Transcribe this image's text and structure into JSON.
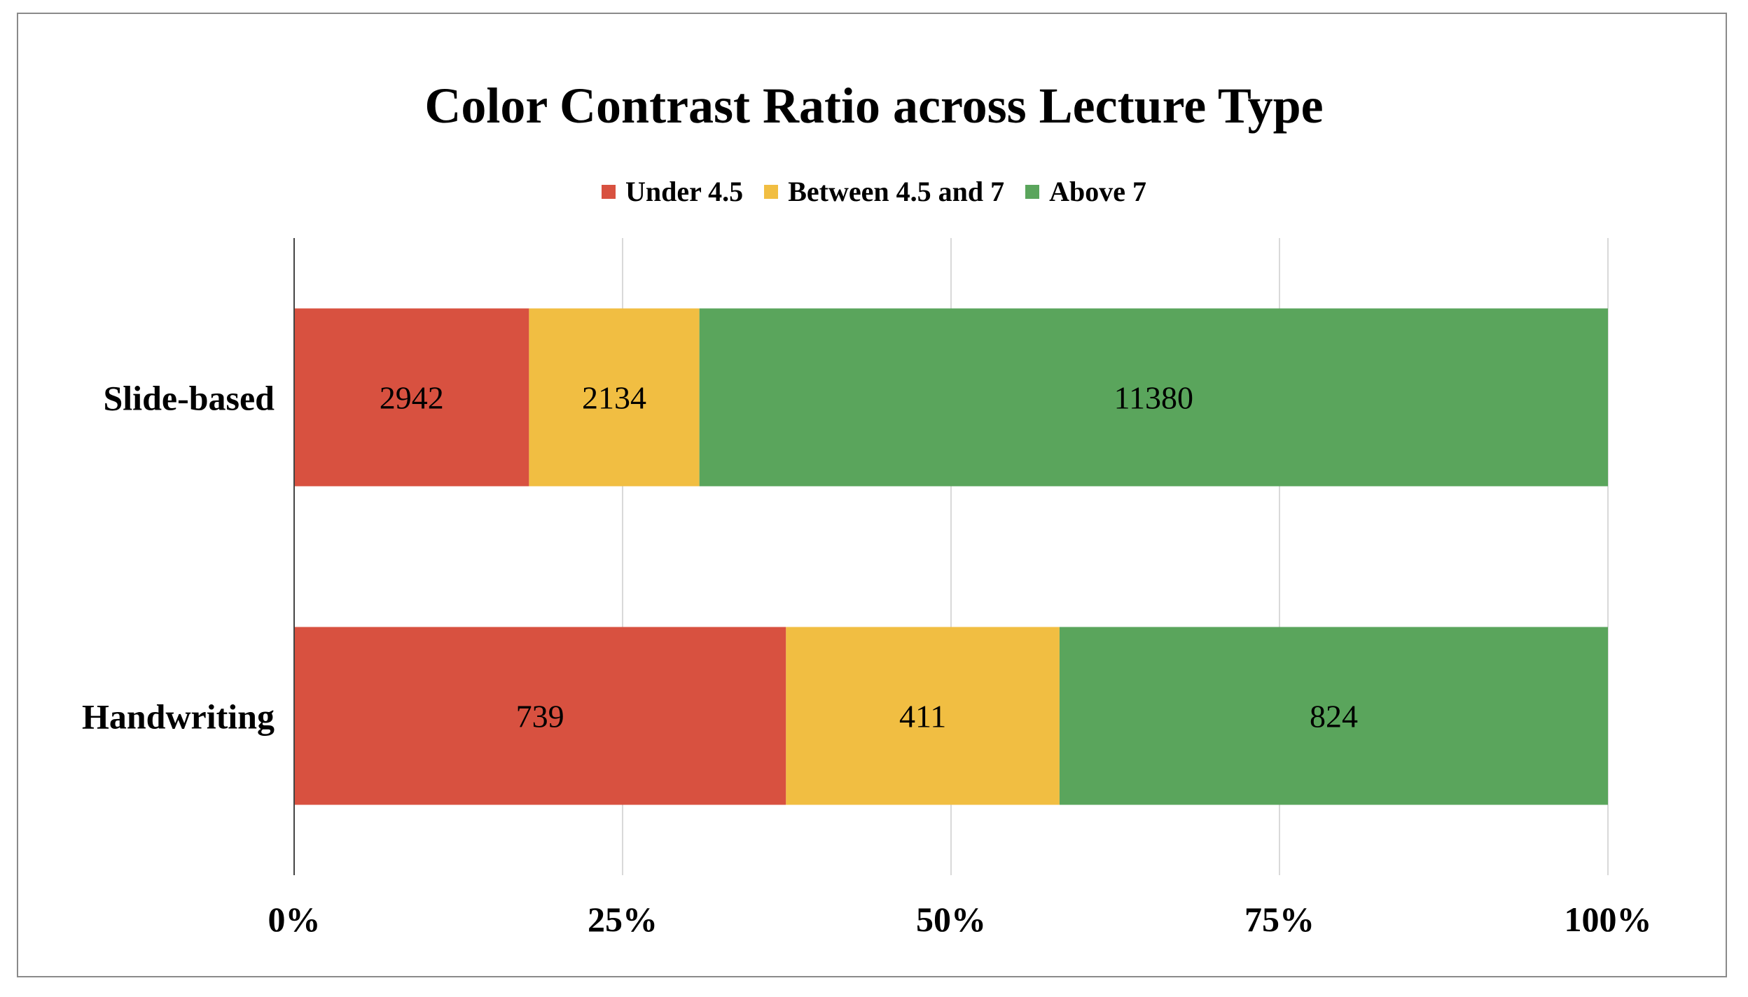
{
  "chart_data": {
    "type": "bar",
    "orientation": "horizontal",
    "stacked": "percent",
    "title": "Color Contrast Ratio across Lecture Type",
    "xlabel": "",
    "ylabel": "",
    "categories": [
      "Slide-based",
      "Handwriting"
    ],
    "series": [
      {
        "name": "Under 4.5",
        "color": "#D85140",
        "values": [
          2942,
          739
        ]
      },
      {
        "name": "Between 4.5 and 7",
        "color": "#F1BE42",
        "values": [
          2134,
          411
        ]
      },
      {
        "name": "Above 7",
        "color": "#5AA55C",
        "values": [
          11380,
          824
        ]
      }
    ],
    "xlim": [
      0,
      100
    ],
    "xticks": [
      "0%",
      "25%",
      "50%",
      "75%",
      "100%"
    ],
    "grid": "vertical",
    "legend": "top-center"
  }
}
